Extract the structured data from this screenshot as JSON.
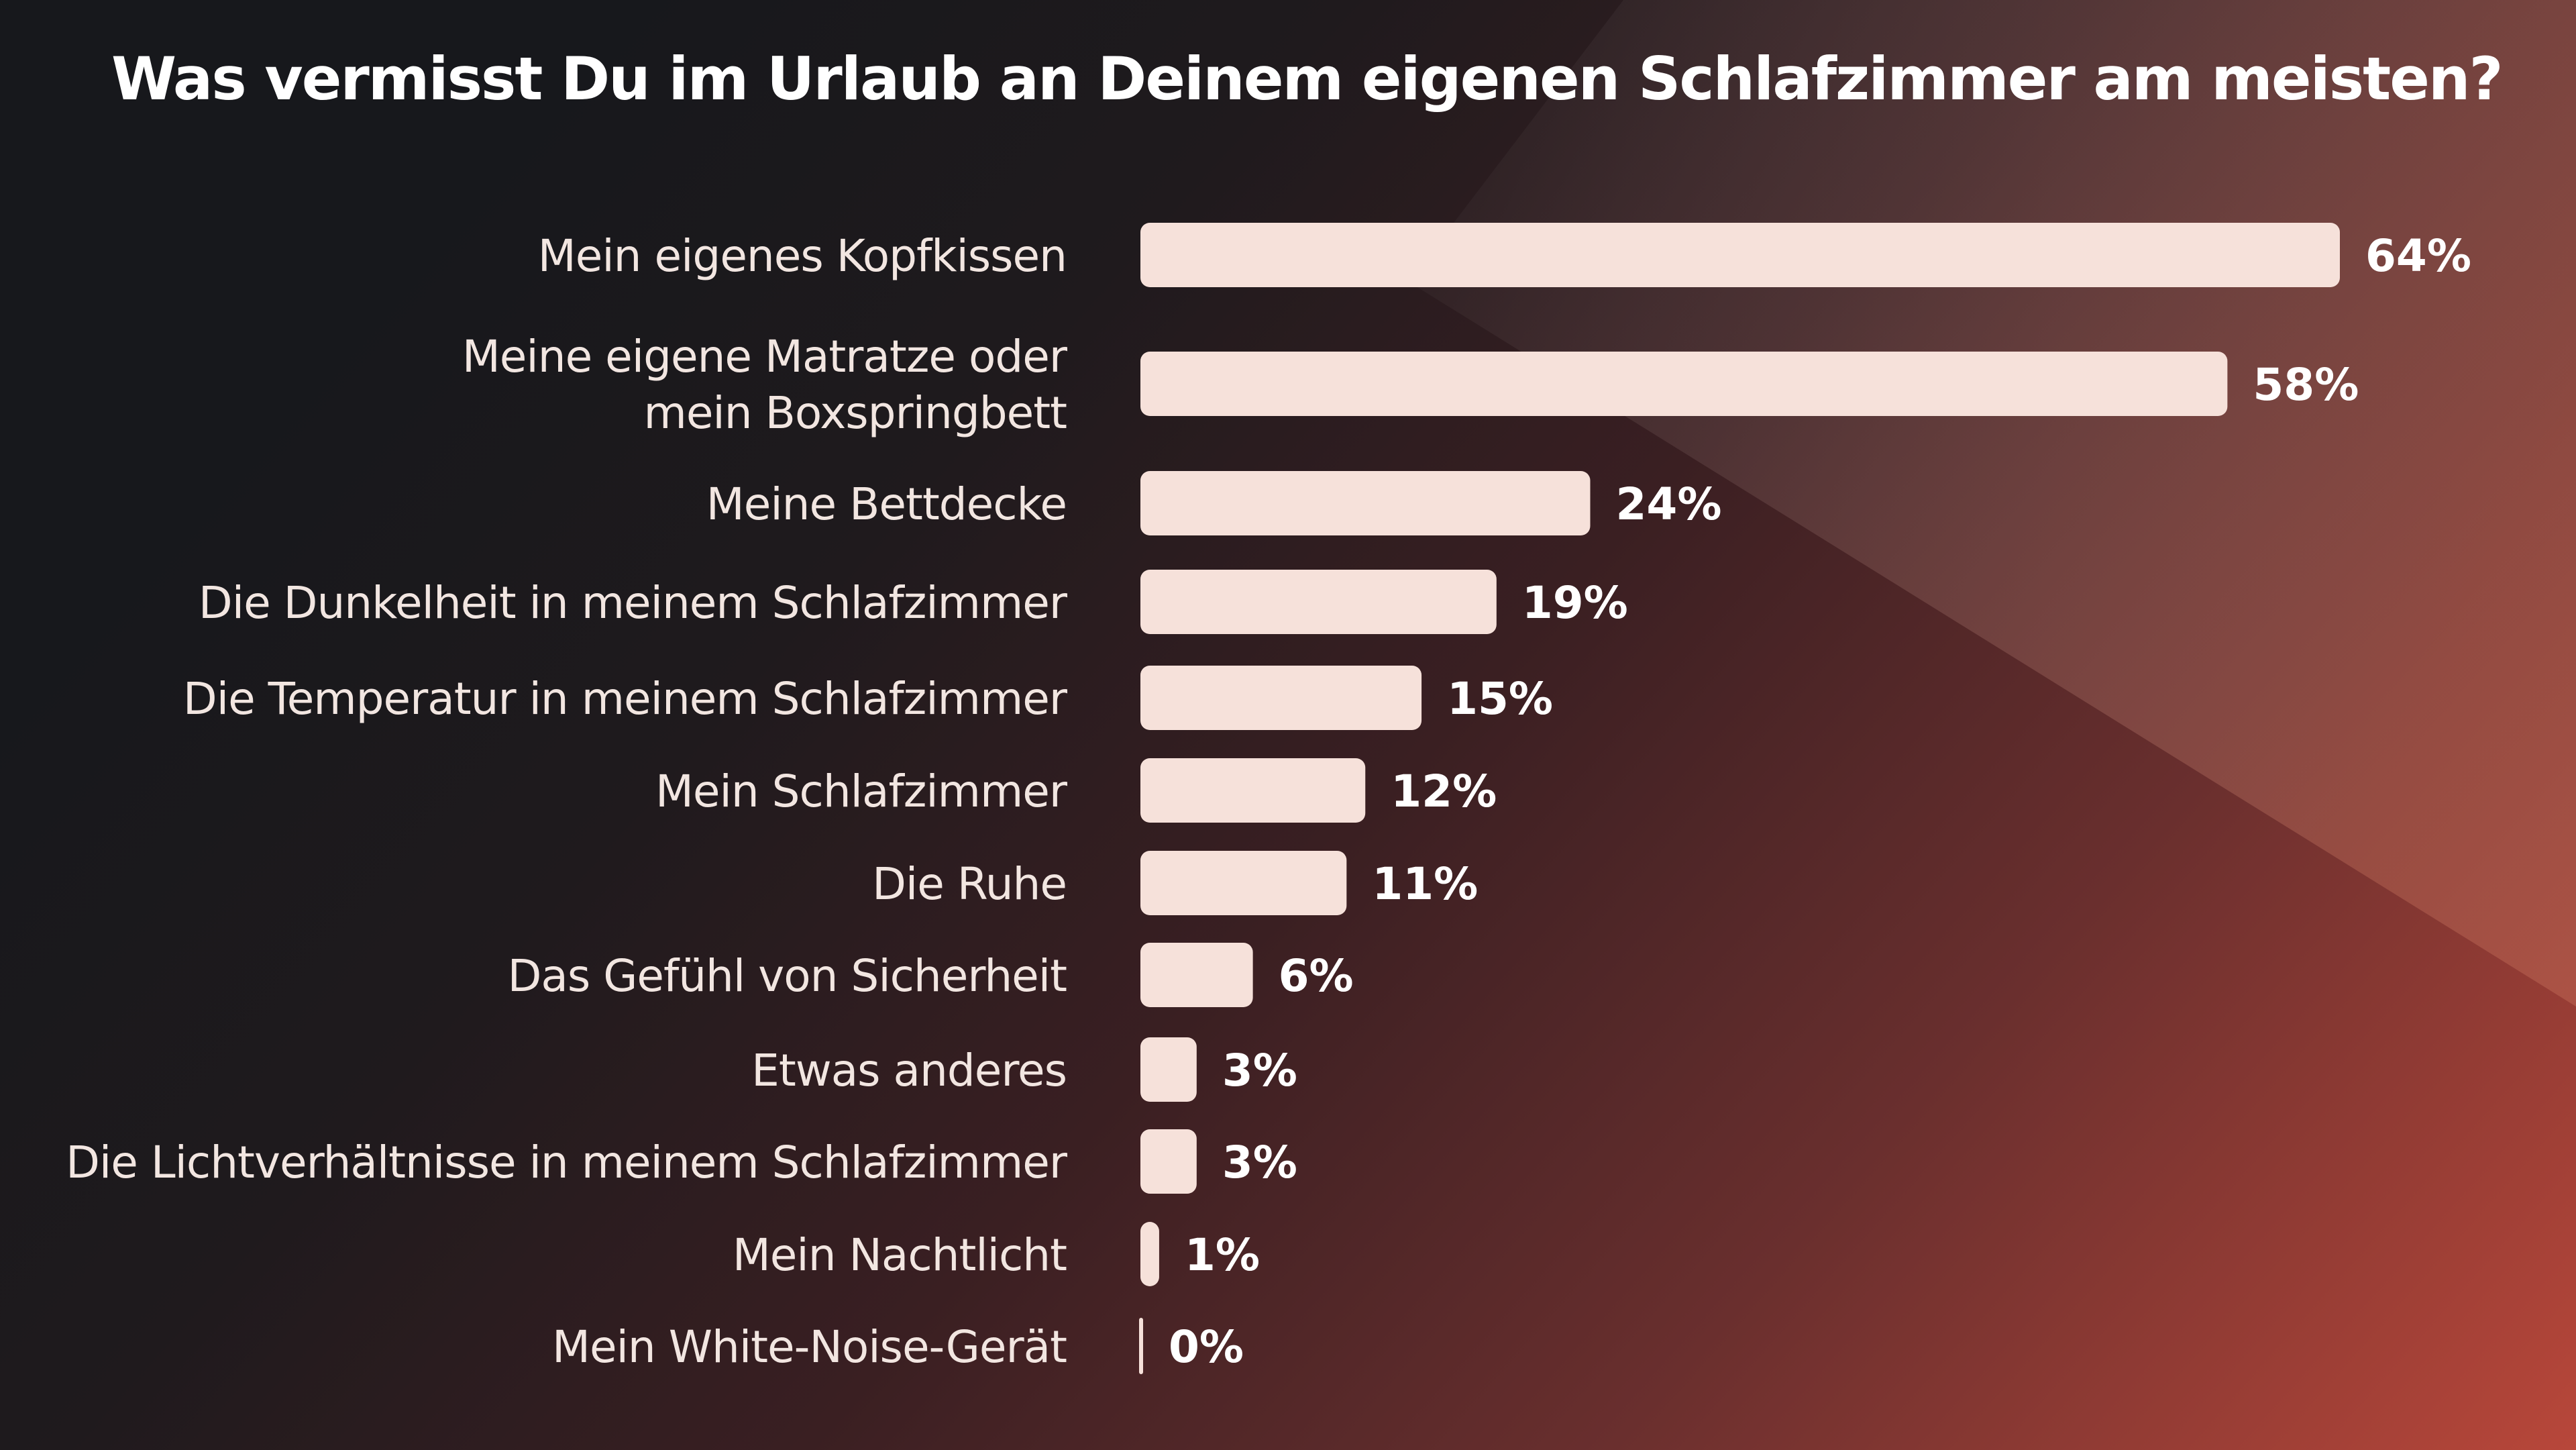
{
  "colors": {
    "bar": "#f6e1da",
    "text": "#ffffff",
    "background_dark": "#1a1b1f",
    "background_accent": "#b5473a"
  },
  "chart_data": {
    "type": "bar",
    "orientation": "horizontal",
    "title": "Was vermisst Du im Urlaub an Deinem eigenen Schlafzimmer am meisten?",
    "xlabel": "",
    "ylabel": "",
    "xlim": [
      0,
      64
    ],
    "grid": false,
    "legend": "none",
    "categories": [
      [
        "Mein eigenes Kopfkissen"
      ],
      [
        "Meine eigene Matratze oder",
        "mein Boxspringbett"
      ],
      [
        "Meine Bettdecke"
      ],
      [
        "Die Dunkelheit in meinem Schlafzimmer"
      ],
      [
        "Die Temperatur in meinem Schlafzimmer"
      ],
      [
        "Mein Schlafzimmer"
      ],
      [
        "Die Ruhe"
      ],
      [
        "Das Gefühl von Sicherheit"
      ],
      [
        "Etwas anderes"
      ],
      [
        "Die Lichtverhältnisse in meinem Schlafzimmer"
      ],
      [
        "Mein Nachtlicht"
      ],
      [
        "Mein White-Noise-Gerät"
      ]
    ],
    "values": [
      64,
      58,
      24,
      19,
      15,
      12,
      11,
      6,
      3,
      3,
      1,
      0
    ],
    "value_labels": [
      "64%",
      "58%",
      "24%",
      "19%",
      "15%",
      "12%",
      "11%",
      "6%",
      "3%",
      "3%",
      "1%",
      "0%"
    ]
  }
}
